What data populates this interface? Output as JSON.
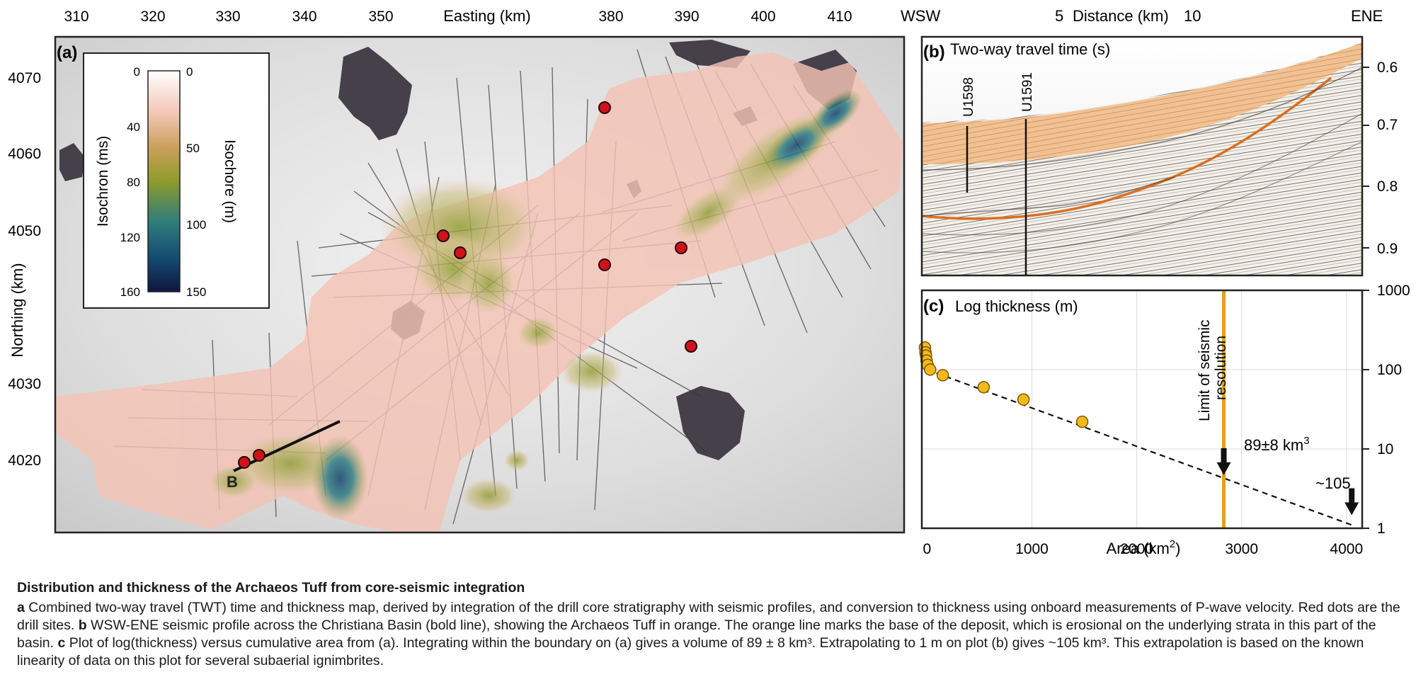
{
  "panel_a": {
    "label": "(a)",
    "x_title": "Easting (km)",
    "y_title": "Northing (km)",
    "x_ticks": [
      "310",
      "320",
      "330",
      "340",
      "350",
      "380",
      "390",
      "400",
      "410"
    ],
    "y_ticks": [
      "4070",
      "4060",
      "4050",
      "4030",
      "4020"
    ],
    "colorbar": {
      "left_title": "Isochron (ms)",
      "right_title": "Isochore (m)",
      "left_ticks": [
        "0",
        "40",
        "80",
        "120",
        "160"
      ],
      "right_ticks": [
        "0",
        "50",
        "100",
        "150"
      ]
    },
    "profile_label": "B",
    "colors": {
      "thin": "#f4c3b5",
      "mid": "#9e9c2a",
      "thick": "#0f3d68",
      "site": "#d0121b"
    }
  },
  "panel_b": {
    "label": "(b)",
    "title": "Two-way travel time (s)",
    "top_axis": {
      "left": "WSW",
      "right": "ENE",
      "tick1": "5",
      "title": "Distance (km)",
      "tick2": "10"
    },
    "y_ticks": [
      "0.6",
      "0.7",
      "0.8",
      "0.9"
    ],
    "wells": [
      "U1598",
      "U1591"
    ],
    "colors": {
      "tuff": "#f0b57c",
      "base_line": "#d96f1f"
    }
  },
  "panel_c": {
    "label": "(c)",
    "title": "Log thickness (m)",
    "xlabel_prefix": "Area (km",
    "xlabel_sup": "2",
    "xlabel_suffix": ")",
    "y_tick_labels": [
      "1000",
      "100",
      "10",
      "1"
    ],
    "x_tick_labels": [
      "0",
      "1000",
      "2000",
      "3000",
      "4000"
    ],
    "resolution_label_1": "Limit of seismic",
    "resolution_label_2": "resolution",
    "volume_label_prefix": "89±8 km",
    "volume_label_sup": "3",
    "extrap_label": "~105",
    "colors": {
      "point": "#f5b81c",
      "limit_line": "#e2a11e"
    }
  },
  "chart_data": {
    "type": "scatter",
    "title": "Log thickness (m)",
    "xlabel": "Area (km2)",
    "ylabel": "Log thickness (m)",
    "x": [
      -20,
      -15,
      -10,
      -5,
      5,
      30,
      150,
      540,
      920,
      1480
    ],
    "y": [
      190,
      165,
      150,
      130,
      115,
      100,
      85,
      60,
      42,
      22
    ],
    "xlim": [
      -50,
      4150
    ],
    "ylim": [
      1,
      1000
    ],
    "yscale": "log",
    "grid": true,
    "trend_line": {
      "from": [
        0,
        100
      ],
      "to": [
        4050,
        1.1
      ],
      "style": "dashed"
    },
    "resolution_limit_x": 2830,
    "volume_marker": {
      "x": 2830,
      "y": 4.4,
      "label": "89±8 km3"
    },
    "extrapolation_marker": {
      "x": 4050,
      "y": 1.1,
      "label": "~105"
    }
  },
  "caption": {
    "title": "Distribution and thickness of the Archaeos Tuff from core-seismic integration",
    "a_letter": "a",
    "a_text": "Combined two-way travel (TWT) time and thickness map, derived by integration of the drill core stratigraphy with seismic profiles, and conversion to thickness using onboard measurements of P-wave velocity. Red dots are the drill sites.",
    "b_letter": "b",
    "b_text": "WSW-ENE seismic profile across the Christiana Basin (bold line), showing the Archaeos Tuff in orange. The orange line marks the base of the deposit, which is erosional on the underlying strata in this part of the basin.",
    "c_letter": "c",
    "c_text": "Plot of log(thickness) versus cumulative area from (a). Integrating within the boundary on (a) gives a volume of 89 ± 8 km³. Extrapolating to 1 m on plot (b) gives ~105 km³. This extrapolation is based on the known linearity of data on this plot for several subaerial ignimbrites."
  }
}
